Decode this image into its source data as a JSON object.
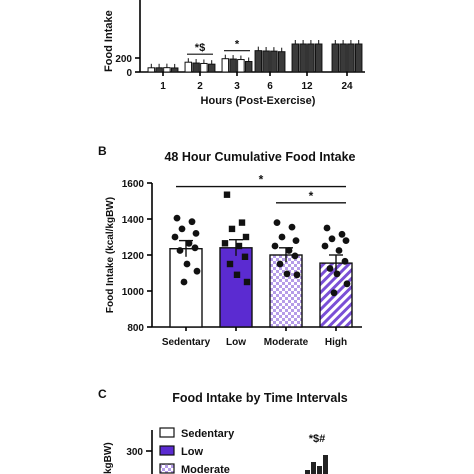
{
  "colors": {
    "sedentary": "#ffffff",
    "low": "#5b2bd1",
    "moderate": "#b59ce8",
    "high": "#7a4fd6",
    "ink": "#111111"
  },
  "chart_data": [
    {
      "type": "bar",
      "xlabel": "Hours (Post-Exercise)",
      "ylabel": "Food Intake",
      "ylim": [
        0,
        400
      ],
      "yticks": [
        0,
        200
      ],
      "categories": [
        "1",
        "2",
        "3",
        "6",
        "12",
        "24"
      ],
      "series": [
        {
          "values": [
            60,
            140,
            190,
            305,
            400,
            400
          ]
        },
        {
          "values": [
            60,
            128,
            185,
            300,
            400,
            400
          ]
        },
        {
          "values": [
            62,
            122,
            178,
            298,
            400,
            400
          ]
        },
        {
          "values": [
            58,
            112,
            150,
            290,
            400,
            400
          ]
        }
      ],
      "annotations": [
        {
          "text": "*$",
          "category": "2"
        },
        {
          "text": "*",
          "category": "3"
        }
      ]
    },
    {
      "panel": "B",
      "type": "bar",
      "title": "48 Hour Cumulative Food Intake",
      "ylabel": "Food Intake (kcal/kgBW)",
      "ylim": [
        800,
        1600
      ],
      "yticks": [
        800,
        1000,
        1200,
        1400,
        1600
      ],
      "categories": [
        "Sedentary",
        "Low",
        "Moderate",
        "High"
      ],
      "values": [
        1235,
        1240,
        1200,
        1155
      ],
      "errors": [
        45,
        45,
        40,
        45
      ],
      "points": [
        [
          1405,
          1385,
          1345,
          1320,
          1300,
          1265,
          1240,
          1225,
          1150,
          1110,
          1050
        ],
        [
          1535,
          1380,
          1345,
          1300,
          1265,
          1250,
          1190,
          1150,
          1090,
          1050
        ],
        [
          1380,
          1355,
          1300,
          1280,
          1250,
          1225,
          1195,
          1150,
          1095,
          1090
        ],
        [
          1350,
          1315,
          1290,
          1280,
          1250,
          1225,
          1165,
          1125,
          1095,
          1040,
          990
        ]
      ],
      "significance": [
        {
          "text": "*",
          "from": "Sedentary",
          "to": "High"
        },
        {
          "text": "*",
          "from": "Moderate",
          "to": "High"
        }
      ]
    },
    {
      "panel": "C",
      "type": "bar",
      "title": "Food Intake by Time Intervals",
      "ylabel": "kgBW)",
      "yticks": [
        300
      ],
      "legend": [
        "Sedentary",
        "Low",
        "Moderate"
      ],
      "annotations": [
        {
          "text": "*$#"
        }
      ]
    }
  ]
}
